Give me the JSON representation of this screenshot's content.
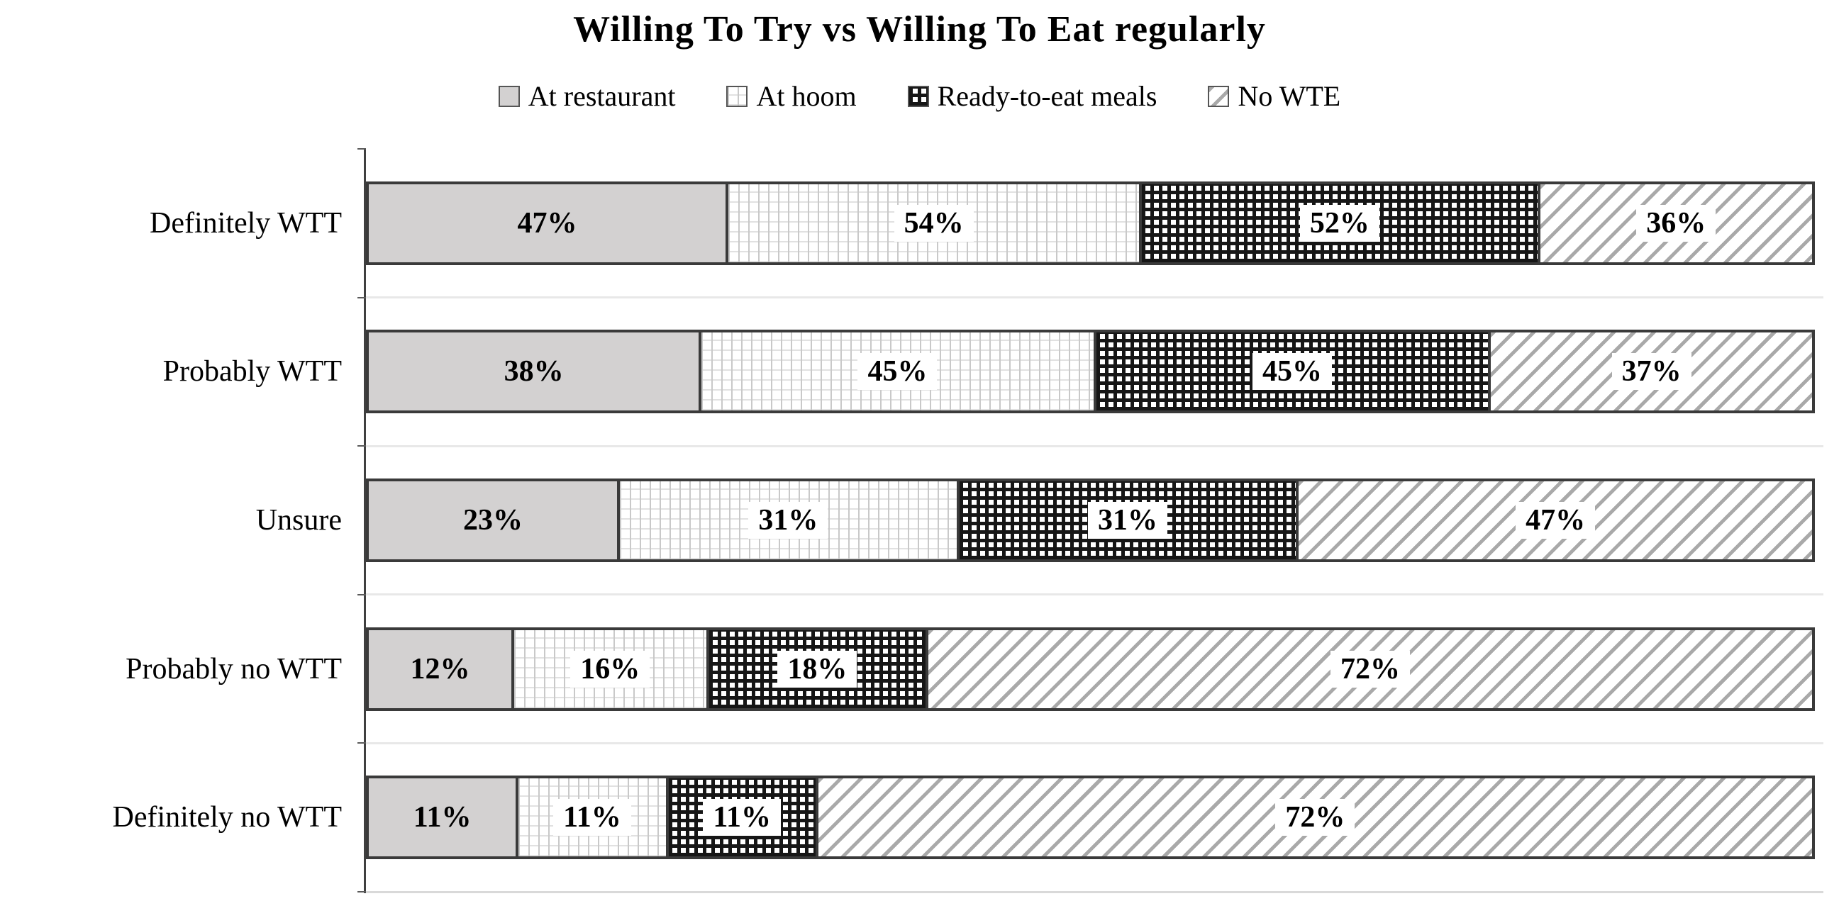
{
  "chart_data": {
    "type": "bar",
    "subtype": "horizontal-stacked",
    "title": "Willing To Try vs Willing To Eat regularly",
    "legend_position": "top",
    "categories": [
      "Definitely WTT",
      "Probably WTT",
      "Unsure",
      "Probably no WTT",
      "Definitely no WTT"
    ],
    "series": [
      {
        "name": "At restaurant",
        "pattern": "solid-gray",
        "values": [
          47,
          38,
          23,
          12,
          11
        ]
      },
      {
        "name": "At hoom",
        "pattern": "light-grid",
        "values": [
          54,
          45,
          31,
          16,
          11
        ]
      },
      {
        "name": "Ready-to-eat meals",
        "pattern": "dark-crosshatch",
        "values": [
          52,
          45,
          31,
          18,
          11
        ]
      },
      {
        "name": "No WTE",
        "pattern": "diagonal-stripes",
        "values": [
          36,
          37,
          47,
          72,
          72
        ]
      }
    ],
    "value_suffix": "%",
    "segment_width_rule": "value divided by row sum",
    "grid": "light horizontal lines at category boundaries",
    "colors": {
      "background": "#ffffff",
      "solid_gray_fill": "#d3d1d1",
      "crosshatch_line": "#161616",
      "diagonal_stripe_line": "#a9a9a9",
      "light_grid_line": "#c9c9c9",
      "segment_border": "#3a3a3a",
      "axis_line": "#3f3f3f",
      "gridline": "#e8e8e8",
      "label_text": "#000000"
    }
  }
}
